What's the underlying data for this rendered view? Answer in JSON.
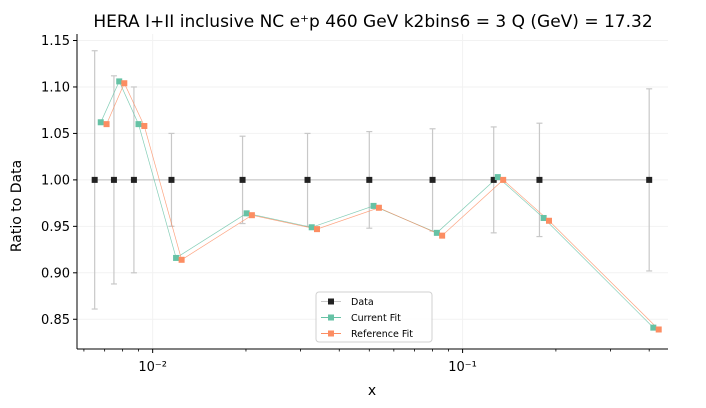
{
  "chart_data": {
    "type": "scatter",
    "title": "HERA I+II inclusive NC e$^+$p 460 GeV k2bins6 = 3 Q (GeV) = 17.32",
    "title_display": "HERA I+II inclusive NC e⁺p 460 GeV k2bins6 = 3 Q (GeV) = 17.32",
    "xlabel": "x",
    "ylabel": "Ratio to Data",
    "xscale": "log",
    "xlim": [
      0.0057,
      0.46
    ],
    "ylim": [
      0.818,
      1.157
    ],
    "yticks": [
      0.85,
      0.9,
      0.95,
      1.0,
      1.05,
      1.1,
      1.15
    ],
    "ytick_labels": [
      "0.85",
      "0.90",
      "0.95",
      "1.00",
      "1.05",
      "1.10",
      "1.15"
    ],
    "xticks": [
      0.01,
      0.1
    ],
    "xtick_labels": [
      "10⁻²",
      "10⁻¹"
    ],
    "legend_position": "lower-center",
    "grid": true,
    "series": [
      {
        "name": "Data",
        "color": "#222222",
        "x": [
          0.0065,
          0.0075,
          0.0087,
          0.0115,
          0.0195,
          0.0316,
          0.05,
          0.08,
          0.126,
          0.177,
          0.4
        ],
        "y": [
          1.0,
          1.0,
          1.0,
          1.0,
          1.0,
          1.0,
          1.0,
          1.0,
          1.0,
          1.0,
          1.0
        ],
        "err_low": [
          0.139,
          0.112,
          0.1,
          0.05,
          0.047,
          0.05,
          0.052,
          0.055,
          0.057,
          0.061,
          0.098
        ],
        "err_high": [
          0.139,
          0.112,
          0.1,
          0.05,
          0.047,
          0.05,
          0.052,
          0.055,
          0.057,
          0.061,
          0.098
        ]
      },
      {
        "name": "Current Fit",
        "color": "#66c2a5",
        "x": [
          0.0068,
          0.0078,
          0.009,
          0.0119,
          0.0201,
          0.0326,
          0.0516,
          0.0826,
          0.1299,
          0.1826,
          0.4125
        ],
        "y": [
          1.062,
          1.106,
          1.06,
          0.916,
          0.964,
          0.949,
          0.972,
          0.943,
          1.003,
          0.959,
          0.841
        ]
      },
      {
        "name": "Reference Fit",
        "color": "#fc8d62",
        "x": [
          0.0071,
          0.0081,
          0.0094,
          0.0124,
          0.0209,
          0.0339,
          0.0537,
          0.0859,
          0.1352,
          0.19,
          0.4293
        ],
        "y": [
          1.06,
          1.104,
          1.058,
          0.914,
          0.962,
          0.947,
          0.97,
          0.94,
          1.0,
          0.956,
          0.839
        ]
      }
    ]
  }
}
